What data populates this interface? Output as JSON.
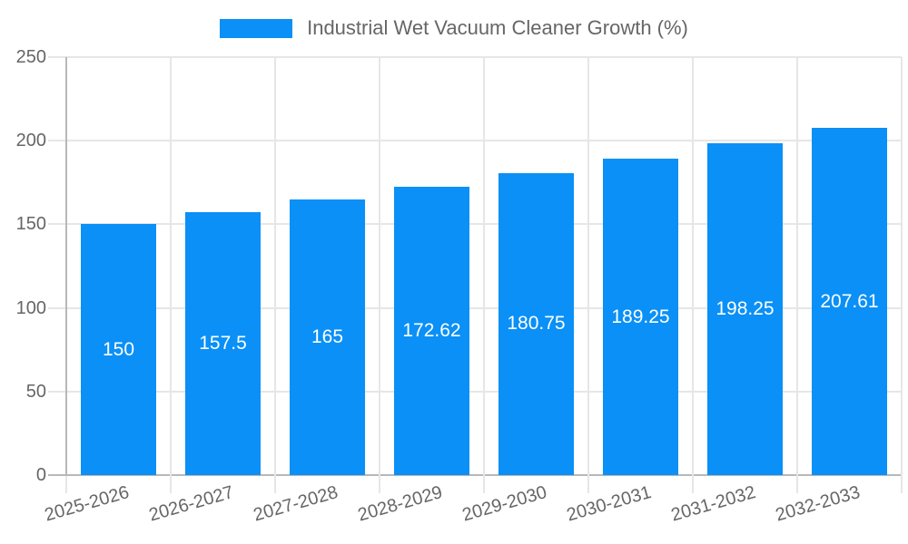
{
  "chart_data": {
    "type": "bar",
    "title": "Industrial Wet Vacuum Cleaner Growth (%)",
    "categories": [
      "2025-2026",
      "2026-2027",
      "2027-2028",
      "2028-2029",
      "2029-2030",
      "2030-2031",
      "2031-2032",
      "2032-2033"
    ],
    "values": [
      150,
      157.5,
      165,
      172.62,
      180.75,
      189.25,
      198.25,
      207.61
    ],
    "value_labels": [
      "150",
      "157.5",
      "165",
      "172.62",
      "180.75",
      "189.25",
      "198.25",
      "207.61"
    ],
    "series_name": "Industrial Wet Vacuum Cleaner Growth (%)",
    "xlabel": "",
    "ylabel": "",
    "y_ticks": [
      0,
      50,
      100,
      150,
      200,
      250
    ],
    "ylim": [
      0,
      250
    ],
    "grid": true,
    "legend_position": "top",
    "colors": {
      "bar": "#0a90f6",
      "bar_label": "#ffffff",
      "tick_text": "#666666",
      "grid_line": "#e6e6e6",
      "axis_line": "#b8b8b8"
    }
  }
}
